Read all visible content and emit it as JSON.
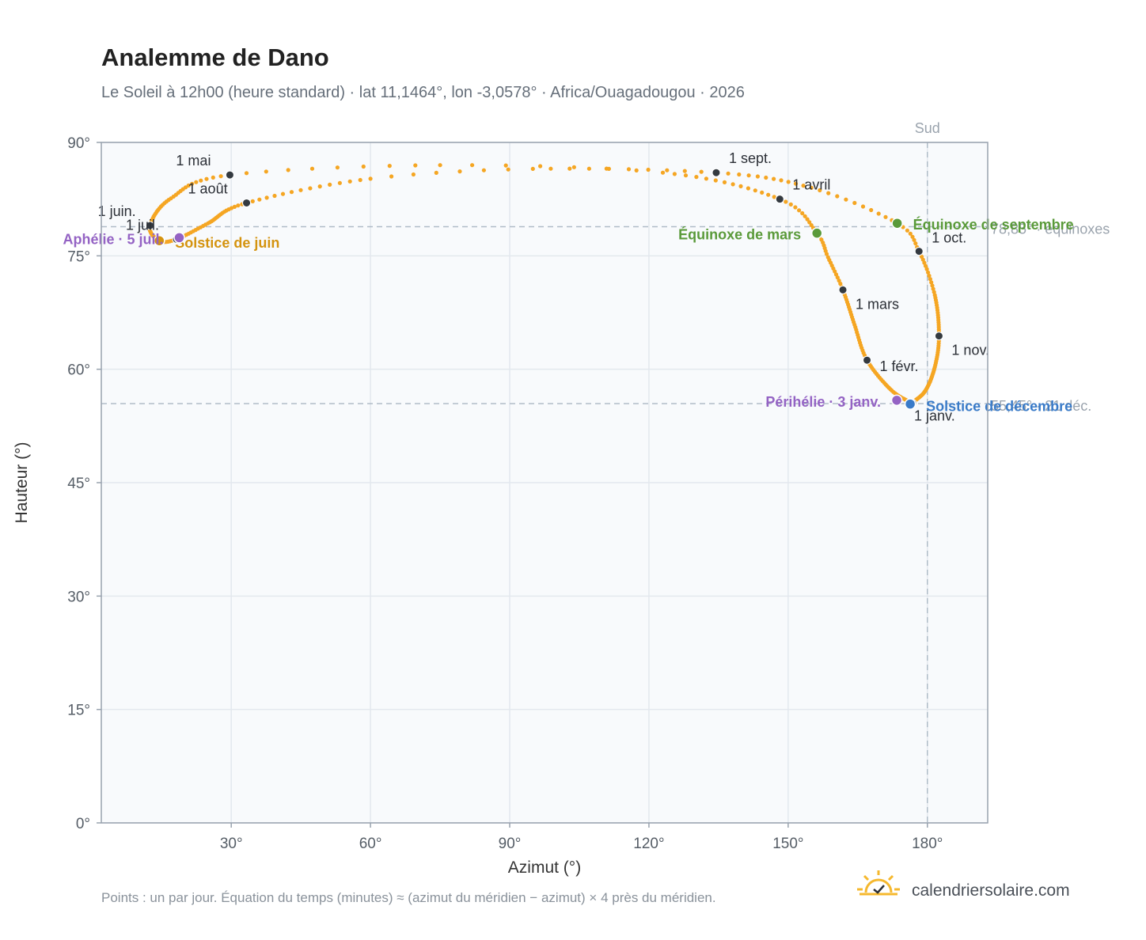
{
  "header": {
    "title": "Analemme de Dano",
    "subtitle": "Le Soleil à 12h00 (heure standard) · lat 11,1464°, lon -3,0578° · Africa/Ouagadougou · 2026"
  },
  "footer": {
    "note": "Points : un par jour. Équation du temps (minutes) ≈ (azimut du méridien − azimut) × 4 près du méridien.",
    "brand": "calendriersolaire.com",
    "brand_icon": "sun-check-icon"
  },
  "colors": {
    "path": "#f5a623",
    "month_marker": "#343a40",
    "solstice_june": "#d4930f",
    "solstice_december": "#3a7bc8",
    "equinox": "#5a9a3a",
    "aphelion_perihelion": "#9463c4",
    "reference_line": "#b0bcc8",
    "plot_background": "#f8fafc",
    "grid": "#e3e8ee",
    "frame": "#98a2ae"
  },
  "chart_data": {
    "type": "scatter",
    "xlabel": "Azimut (°)",
    "ylabel": "Hauteur (°)",
    "xlim": [
      2,
      193
    ],
    "ylim": [
      0,
      90
    ],
    "x_ticks": [
      30,
      60,
      90,
      120,
      150,
      180
    ],
    "y_ticks": [
      0,
      15,
      30,
      45,
      60,
      75,
      90
    ],
    "x_tick_labels": [
      "30°",
      "60°",
      "90°",
      "120°",
      "150°",
      "180°"
    ],
    "y_tick_labels": [
      "0°",
      "15°",
      "30°",
      "45°",
      "60°",
      "75°",
      "90°"
    ],
    "grid": true,
    "series_description": "one point per day",
    "reference_lines": [
      {
        "orientation": "vertical",
        "x": 180,
        "label": "Sud"
      },
      {
        "orientation": "horizontal",
        "y": 78.85,
        "label": "78,85° · équinoxes"
      },
      {
        "orientation": "horizontal",
        "y": 55.45,
        "label": "55,45° · 21 déc."
      }
    ],
    "daily_path_knots": [
      {
        "date": "01-01",
        "az": 176.8,
        "alt": 55.5
      },
      {
        "date": "01-15",
        "az": 172.3,
        "alt": 57.2
      },
      {
        "date": "02-01",
        "az": 167.0,
        "alt": 61.2
      },
      {
        "date": "02-15",
        "az": 164.3,
        "alt": 65.9
      },
      {
        "date": "03-01",
        "az": 161.8,
        "alt": 70.5
      },
      {
        "date": "03-12",
        "az": 158.6,
        "alt": 74.8
      },
      {
        "date": "03-20",
        "az": 156.2,
        "alt": 78.0
      },
      {
        "date": "04-01",
        "az": 148.2,
        "alt": 82.5
      },
      {
        "date": "04-15",
        "az": 123.0,
        "alt": 86.0
      },
      {
        "date": "04-22",
        "az": 75.0,
        "alt": 87.0
      },
      {
        "date": "05-01",
        "az": 29.7,
        "alt": 85.7
      },
      {
        "date": "05-15",
        "az": 17.0,
        "alt": 82.6
      },
      {
        "date": "06-01",
        "az": 12.5,
        "alt": 79.0
      },
      {
        "date": "06-21",
        "az": 14.5,
        "alt": 77.0
      },
      {
        "date": "07-01",
        "az": 18.2,
        "alt": 77.2
      },
      {
        "date": "07-15",
        "az": 25.0,
        "alt": 79.3
      },
      {
        "date": "08-01",
        "az": 33.3,
        "alt": 82.0
      },
      {
        "date": "08-15",
        "az": 60.0,
        "alt": 85.2
      },
      {
        "date": "08-22",
        "az": 95.0,
        "alt": 86.5
      },
      {
        "date": "09-01",
        "az": 134.5,
        "alt": 86.0
      },
      {
        "date": "09-12",
        "az": 155.0,
        "alt": 84.0
      },
      {
        "date": "09-23",
        "az": 173.5,
        "alt": 79.3
      },
      {
        "date": "10-01",
        "az": 178.2,
        "alt": 75.6
      },
      {
        "date": "10-15",
        "az": 181.6,
        "alt": 69.8
      },
      {
        "date": "11-01",
        "az": 182.5,
        "alt": 64.4
      },
      {
        "date": "11-15",
        "az": 181.6,
        "alt": 60.3
      },
      {
        "date": "12-01",
        "az": 179.5,
        "alt": 57.1
      },
      {
        "date": "12-21",
        "az": 176.3,
        "alt": 55.4
      },
      {
        "date": "12-31",
        "az": 176.8,
        "alt": 55.5
      }
    ],
    "month_markers": [
      {
        "label": "1 janv.",
        "az": 176.8,
        "alt": 55.5,
        "dx": 2,
        "dy": 22
      },
      {
        "label": "1 févr.",
        "az": 167.0,
        "alt": 61.2,
        "dx": 16,
        "dy": 14
      },
      {
        "label": "1 mars",
        "az": 161.8,
        "alt": 70.5,
        "dx": 16,
        "dy": 24
      },
      {
        "label": "1 avril",
        "az": 148.2,
        "alt": 82.5,
        "dx": 16,
        "dy": -12
      },
      {
        "label": "1 mai",
        "az": 29.7,
        "alt": 85.7,
        "dx": -68,
        "dy": -12
      },
      {
        "label": "1 juin.",
        "az": 12.5,
        "alt": 79.0,
        "dx": -66,
        "dy": -12
      },
      {
        "label": "1 juil.",
        "az": 18.2,
        "alt": 77.2,
        "dx": -64,
        "dy": -12
      },
      {
        "label": "1 août",
        "az": 33.3,
        "alt": 82.0,
        "dx": -74,
        "dy": -12
      },
      {
        "label": "1 sept.",
        "az": 134.5,
        "alt": 86.0,
        "dx": 16,
        "dy": -12
      },
      {
        "label": "1 oct.",
        "az": 178.2,
        "alt": 75.6,
        "dx": 16,
        "dy": -11
      },
      {
        "label": "1 nov.",
        "az": 182.5,
        "alt": 64.4,
        "dx": 16,
        "dy": 24
      }
    ],
    "events": [
      {
        "label": "Équinoxe de mars",
        "az": 156.2,
        "alt": 78.0,
        "color": "#5a9a3a",
        "anchor": "end",
        "dx": -20,
        "dy": 8
      },
      {
        "label": "Équinoxe de septembre",
        "az": 173.5,
        "alt": 79.3,
        "color": "#5a9a3a",
        "anchor": "start",
        "dx": 20,
        "dy": 8
      },
      {
        "label": "Solstice de juin",
        "az": 14.5,
        "alt": 77.0,
        "color": "#d4930f",
        "anchor": "start",
        "dx": 20,
        "dy": 9
      },
      {
        "label": "Solstice de décembre",
        "az": 176.3,
        "alt": 55.4,
        "color": "#3a7bc8",
        "anchor": "start",
        "dx": 20,
        "dy": 9
      },
      {
        "label": "Aphélie · 5 juil.",
        "az": 18.8,
        "alt": 77.4,
        "color": "#9463c4",
        "anchor": "end",
        "dx": -20,
        "dy": 8
      },
      {
        "label": "Périhélie · 3 janv.",
        "az": 173.4,
        "alt": 55.9,
        "color": "#9463c4",
        "anchor": "end",
        "dx": -20,
        "dy": 8
      }
    ]
  }
}
